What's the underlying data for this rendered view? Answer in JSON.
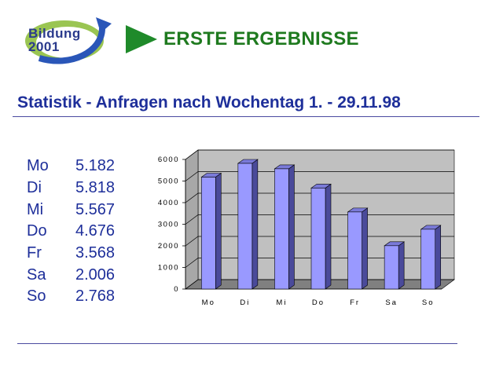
{
  "header": {
    "logo_line1": "Bildung",
    "logo_line2": "2001",
    "title": "ERSTE ERGEBNISSE"
  },
  "subtitle": "Statistik - Anfragen nach Wochentag 1. - 29.11.98",
  "table": {
    "rows": [
      {
        "day": "Mo",
        "value": "5.182"
      },
      {
        "day": "Di",
        "value": "5.818"
      },
      {
        "day": "Mi",
        "value": "5.567"
      },
      {
        "day": "Do",
        "value": "4.676"
      },
      {
        "day": "Fr",
        "value": "3.568"
      },
      {
        "day": "Sa",
        "value": "2.006"
      },
      {
        "day": "So",
        "value": "2.768"
      }
    ]
  },
  "colors": {
    "accent_green": "#1f7a1f",
    "text_blue": "#1e2f9a",
    "bar_face": "#9999ff",
    "bar_side": "#4a4a9a",
    "wall": "#c0c0c0",
    "floor": "#808080"
  },
  "chart_data": {
    "type": "bar",
    "categories": [
      "Mo",
      "Di",
      "Mi",
      "Do",
      "Fr",
      "Sa",
      "So"
    ],
    "values": [
      5182,
      5818,
      5567,
      4676,
      3568,
      2006,
      2768
    ],
    "yticks": [
      0,
      1000,
      2000,
      3000,
      4000,
      5000,
      6000
    ],
    "ytick_labels": [
      "0",
      "1000",
      "2000",
      "3000",
      "4000",
      "5000",
      "6000"
    ],
    "ylim": [
      0,
      6000
    ],
    "grid": true,
    "style": "3d"
  }
}
